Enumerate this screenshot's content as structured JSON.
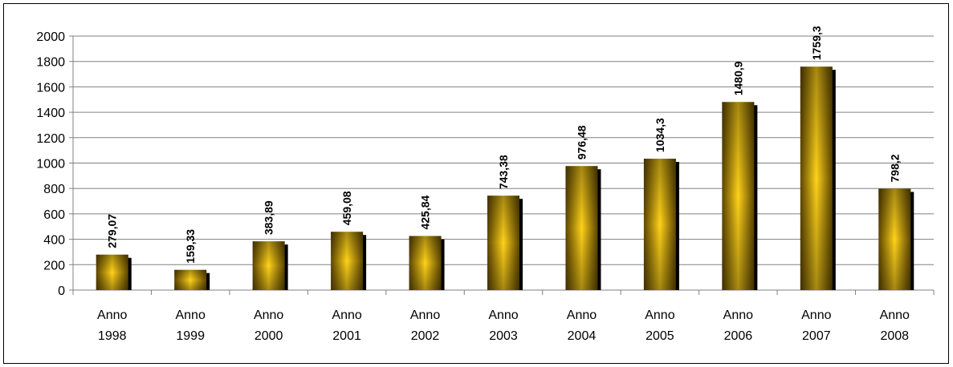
{
  "chart_data": {
    "type": "bar",
    "categories": [
      [
        "Anno",
        "1998"
      ],
      [
        "Anno",
        "1999"
      ],
      [
        "Anno",
        "2000"
      ],
      [
        "Anno",
        "2001"
      ],
      [
        "Anno",
        "2002"
      ],
      [
        "Anno",
        "2003"
      ],
      [
        "Anno",
        "2004"
      ],
      [
        "Anno",
        "2005"
      ],
      [
        "Anno",
        "2006"
      ],
      [
        "Anno",
        "2007"
      ],
      [
        "Anno",
        "2008"
      ]
    ],
    "values": [
      279.07,
      159.33,
      383.89,
      459.08,
      425.84,
      743.38,
      976.48,
      1034.3,
      1480.9,
      1759.3,
      798.2
    ],
    "value_labels": [
      "279,07",
      "159,33",
      "383,89",
      "459,08",
      "425,84",
      "743,38",
      "976,48",
      "1034,3",
      "1480,9",
      "1759,3",
      "798,2"
    ],
    "yticks": [
      0,
      200,
      400,
      600,
      800,
      1000,
      1200,
      1400,
      1600,
      1800,
      2000
    ],
    "ylim": [
      0,
      2000
    ],
    "grid": true,
    "legend": "none",
    "colors": {
      "bar_dark": "#5e4600",
      "bar_mid": "#a88300",
      "bar_light": "#ffd21a",
      "bar_shadow": "#000000",
      "gridline": "#808080",
      "axis": "#808080"
    }
  }
}
